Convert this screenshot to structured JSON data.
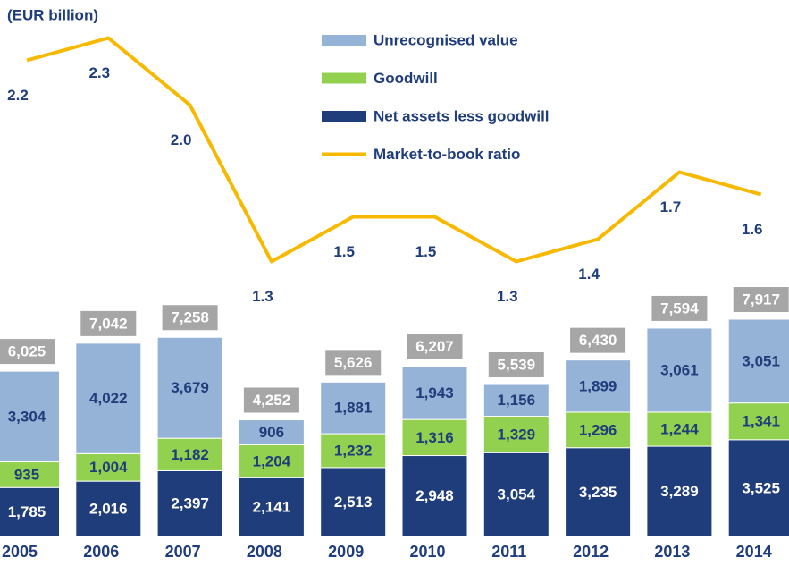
{
  "chart_data": {
    "type": "bar",
    "stacked": true,
    "subtitle": "(EUR billion)",
    "categories": [
      "2005",
      "2006",
      "2007",
      "2008",
      "2009",
      "2010",
      "2011",
      "2012",
      "2013",
      "2014"
    ],
    "series": [
      {
        "name": "Net assets less goodwill",
        "color": "#1f3d7a",
        "values": [
          1785,
          2016,
          2397,
          2141,
          2513,
          2948,
          3054,
          3235,
          3289,
          3525
        ],
        "value_labels": [
          "1,785",
          "2,016",
          "2,397",
          "2,141",
          "2,513",
          "2,948",
          "3,054",
          "3,235",
          "3,289",
          "3,525"
        ]
      },
      {
        "name": "Goodwill",
        "color": "#92d050",
        "values": [
          935,
          1004,
          1182,
          1204,
          1232,
          1316,
          1329,
          1296,
          1244,
          1341
        ],
        "value_labels": [
          "935",
          "1,004",
          "1,182",
          "1,204",
          "1,232",
          "1,316",
          "1,329",
          "1,296",
          "1,244",
          "1,341"
        ]
      },
      {
        "name": "Unrecognised value",
        "color": "#95b3d7",
        "values": [
          3304,
          4022,
          3679,
          906,
          1881,
          1943,
          1156,
          1899,
          3061,
          3051
        ],
        "value_labels": [
          "3,304",
          "4,022",
          "3,679",
          "906",
          "1,881",
          "1,943",
          "1,156",
          "1,899",
          "3,061",
          "3,051"
        ]
      },
      {
        "name": "Market-to-book ratio",
        "color": "#f7b900",
        "type": "line",
        "axis": "y2",
        "values": [
          2.2,
          2.3,
          2.0,
          1.3,
          1.5,
          1.5,
          1.3,
          1.4,
          1.7,
          1.6
        ],
        "value_labels": [
          "2.2",
          "2.3",
          "2.0",
          "1.3",
          "1.5",
          "1.5",
          "1.3",
          "1.4",
          "1.7",
          "1.6"
        ]
      }
    ],
    "totals": [
      6025,
      7042,
      7258,
      4252,
      5626,
      6207,
      5539,
      6430,
      7594,
      7917
    ],
    "total_labels": [
      "6,025",
      "7,042",
      "7,258",
      "4,252",
      "5,626",
      "6,207",
      "5,539",
      "6,430",
      "7,594",
      "7,917"
    ],
    "total_color": "#a6a6a6",
    "ylim": [
      0,
      19550
    ],
    "y2lim": [
      0.07,
      2.47
    ]
  }
}
